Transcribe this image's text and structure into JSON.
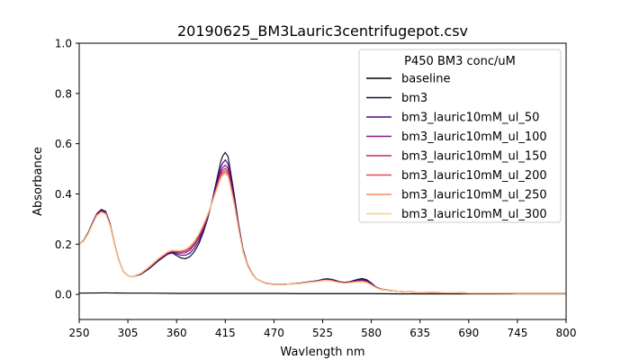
{
  "chart_data": {
    "type": "line",
    "title": "20190625_BM3Lauric3centrifugepot.csv",
    "xlabel": "Wavlength nm",
    "ylabel": "Absorbance",
    "xlim": [
      250,
      800
    ],
    "ylim": [
      -0.1,
      1.0
    ],
    "xticks": [
      250,
      305,
      360,
      415,
      470,
      525,
      580,
      635,
      690,
      745,
      800
    ],
    "yticks": [
      0.0,
      0.2,
      0.4,
      0.6,
      0.8,
      1.0
    ],
    "ytick_labels": [
      "0.0",
      "0.2",
      "0.4",
      "0.6",
      "0.8",
      "1.0"
    ],
    "grid": false,
    "legend": {
      "title": "P450 BM3 conc/uM",
      "placement": "top-right"
    },
    "series": [
      {
        "name": "baseline",
        "color": "#000000",
        "x": [
          250,
          280,
          305,
          330,
          360,
          390,
          415,
          440,
          470,
          500,
          525,
          550,
          580,
          610,
          635,
          660,
          690,
          720,
          745,
          770,
          800
        ],
        "y": [
          0.005,
          0.006,
          0.005,
          0.005,
          0.004,
          0.004,
          0.004,
          0.004,
          0.004,
          0.003,
          0.003,
          0.003,
          0.003,
          0.002,
          0.002,
          0.002,
          0.002,
          0.002,
          0.002,
          0.002,
          0.002
        ]
      },
      {
        "name": "bm3",
        "color": "#140f3a",
        "x": [
          250,
          255,
          260,
          265,
          270,
          275,
          280,
          285,
          290,
          295,
          300,
          305,
          310,
          320,
          330,
          340,
          350,
          355,
          360,
          365,
          370,
          375,
          380,
          385,
          390,
          395,
          400,
          405,
          410,
          412,
          415,
          418,
          420,
          425,
          430,
          435,
          440,
          445,
          450,
          460,
          470,
          480,
          490,
          500,
          510,
          520,
          525,
          530,
          535,
          540,
          545,
          550,
          555,
          560,
          565,
          570,
          575,
          580,
          585,
          590,
          600,
          610,
          620,
          640,
          660,
          680,
          700,
          720,
          745,
          770,
          800
        ],
        "y": [
          0.2,
          0.215,
          0.245,
          0.285,
          0.322,
          0.338,
          0.33,
          0.28,
          0.2,
          0.135,
          0.09,
          0.075,
          0.07,
          0.08,
          0.105,
          0.135,
          0.16,
          0.165,
          0.155,
          0.145,
          0.142,
          0.15,
          0.17,
          0.2,
          0.245,
          0.3,
          0.37,
          0.45,
          0.53,
          0.55,
          0.565,
          0.55,
          0.51,
          0.4,
          0.28,
          0.18,
          0.12,
          0.085,
          0.062,
          0.045,
          0.04,
          0.04,
          0.042,
          0.045,
          0.05,
          0.055,
          0.06,
          0.062,
          0.06,
          0.055,
          0.05,
          0.048,
          0.05,
          0.055,
          0.06,
          0.063,
          0.058,
          0.045,
          0.03,
          0.022,
          0.016,
          0.012,
          0.01,
          0.008,
          0.007,
          0.006,
          0.005,
          0.005,
          0.004,
          0.004,
          0.004
        ]
      },
      {
        "name": "bm3_lauric10mM_ul_50",
        "color": "#4d0b7a",
        "x": [
          250,
          255,
          260,
          265,
          270,
          275,
          280,
          285,
          290,
          295,
          300,
          305,
          310,
          320,
          330,
          340,
          350,
          355,
          360,
          365,
          370,
          375,
          380,
          385,
          390,
          395,
          400,
          405,
          410,
          412,
          415,
          418,
          420,
          425,
          430,
          435,
          440,
          445,
          450,
          460,
          470,
          480,
          490,
          500,
          510,
          520,
          525,
          530,
          535,
          540,
          545,
          550,
          555,
          560,
          565,
          570,
          575,
          580,
          585,
          590,
          600,
          610,
          620,
          640,
          660,
          680,
          700,
          720,
          745,
          770,
          800
        ],
        "y": [
          0.2,
          0.214,
          0.243,
          0.283,
          0.32,
          0.335,
          0.327,
          0.278,
          0.199,
          0.134,
          0.09,
          0.075,
          0.07,
          0.082,
          0.108,
          0.138,
          0.162,
          0.168,
          0.162,
          0.156,
          0.156,
          0.164,
          0.183,
          0.212,
          0.254,
          0.305,
          0.368,
          0.437,
          0.506,
          0.522,
          0.535,
          0.521,
          0.485,
          0.385,
          0.272,
          0.176,
          0.118,
          0.084,
          0.061,
          0.045,
          0.04,
          0.04,
          0.042,
          0.045,
          0.05,
          0.054,
          0.058,
          0.059,
          0.058,
          0.053,
          0.049,
          0.047,
          0.049,
          0.053,
          0.057,
          0.059,
          0.054,
          0.042,
          0.029,
          0.021,
          0.016,
          0.012,
          0.01,
          0.008,
          0.007,
          0.006,
          0.005,
          0.005,
          0.004,
          0.004,
          0.004
        ]
      },
      {
        "name": "bm3_lauric10mM_ul_100",
        "color": "#8a1a86",
        "x": [
          250,
          255,
          260,
          265,
          270,
          275,
          280,
          285,
          290,
          295,
          300,
          305,
          310,
          320,
          330,
          340,
          350,
          355,
          360,
          365,
          370,
          375,
          380,
          385,
          390,
          395,
          400,
          405,
          410,
          412,
          415,
          418,
          420,
          425,
          430,
          435,
          440,
          445,
          450,
          460,
          470,
          480,
          490,
          500,
          510,
          520,
          525,
          530,
          535,
          540,
          545,
          550,
          555,
          560,
          565,
          570,
          575,
          580,
          585,
          590,
          600,
          610,
          620,
          640,
          660,
          680,
          700,
          720,
          745,
          770,
          800
        ],
        "y": [
          0.2,
          0.213,
          0.242,
          0.281,
          0.318,
          0.332,
          0.325,
          0.276,
          0.198,
          0.134,
          0.089,
          0.075,
          0.07,
          0.083,
          0.11,
          0.141,
          0.165,
          0.17,
          0.167,
          0.164,
          0.166,
          0.176,
          0.195,
          0.224,
          0.262,
          0.31,
          0.366,
          0.428,
          0.49,
          0.504,
          0.515,
          0.502,
          0.468,
          0.375,
          0.267,
          0.173,
          0.117,
          0.083,
          0.061,
          0.045,
          0.039,
          0.039,
          0.041,
          0.044,
          0.049,
          0.053,
          0.057,
          0.058,
          0.056,
          0.052,
          0.048,
          0.046,
          0.048,
          0.051,
          0.054,
          0.056,
          0.051,
          0.04,
          0.028,
          0.021,
          0.016,
          0.012,
          0.01,
          0.008,
          0.007,
          0.006,
          0.005,
          0.005,
          0.004,
          0.004,
          0.004
        ]
      },
      {
        "name": "bm3_lauric10mM_ul_150",
        "color": "#c1296a",
        "x": [
          250,
          255,
          260,
          265,
          270,
          275,
          280,
          285,
          290,
          295,
          300,
          305,
          310,
          320,
          330,
          340,
          350,
          355,
          360,
          365,
          370,
          375,
          380,
          385,
          390,
          395,
          400,
          405,
          410,
          412,
          415,
          418,
          420,
          425,
          430,
          435,
          440,
          445,
          450,
          460,
          470,
          480,
          490,
          500,
          510,
          520,
          525,
          530,
          535,
          540,
          545,
          550,
          555,
          560,
          565,
          570,
          575,
          580,
          585,
          590,
          600,
          610,
          620,
          640,
          660,
          680,
          700,
          720,
          745,
          770,
          800
        ],
        "y": [
          0.2,
          0.213,
          0.241,
          0.28,
          0.316,
          0.33,
          0.323,
          0.275,
          0.197,
          0.133,
          0.089,
          0.075,
          0.07,
          0.084,
          0.111,
          0.142,
          0.167,
          0.172,
          0.17,
          0.169,
          0.172,
          0.183,
          0.202,
          0.231,
          0.268,
          0.313,
          0.365,
          0.422,
          0.48,
          0.493,
          0.502,
          0.49,
          0.457,
          0.368,
          0.264,
          0.172,
          0.116,
          0.083,
          0.061,
          0.044,
          0.039,
          0.039,
          0.041,
          0.044,
          0.048,
          0.052,
          0.056,
          0.057,
          0.055,
          0.051,
          0.047,
          0.045,
          0.047,
          0.05,
          0.052,
          0.053,
          0.049,
          0.039,
          0.028,
          0.02,
          0.015,
          0.012,
          0.01,
          0.008,
          0.007,
          0.006,
          0.005,
          0.005,
          0.004,
          0.004,
          0.004
        ]
      },
      {
        "name": "bm3_lauric10mM_ul_200",
        "color": "#eb4a52",
        "x": [
          250,
          255,
          260,
          265,
          270,
          275,
          280,
          285,
          290,
          295,
          300,
          305,
          310,
          320,
          330,
          340,
          350,
          355,
          360,
          365,
          370,
          375,
          380,
          385,
          390,
          395,
          400,
          405,
          410,
          412,
          415,
          418,
          420,
          425,
          430,
          435,
          440,
          445,
          450,
          460,
          470,
          480,
          490,
          500,
          510,
          520,
          525,
          530,
          535,
          540,
          545,
          550,
          555,
          560,
          565,
          570,
          575,
          580,
          585,
          590,
          600,
          610,
          620,
          640,
          660,
          680,
          700,
          720,
          745,
          770,
          800
        ],
        "y": [
          0.2,
          0.212,
          0.24,
          0.279,
          0.315,
          0.328,
          0.321,
          0.274,
          0.197,
          0.133,
          0.089,
          0.075,
          0.07,
          0.084,
          0.112,
          0.143,
          0.168,
          0.174,
          0.172,
          0.172,
          0.176,
          0.188,
          0.207,
          0.236,
          0.272,
          0.315,
          0.364,
          0.418,
          0.472,
          0.484,
          0.492,
          0.481,
          0.45,
          0.363,
          0.262,
          0.171,
          0.116,
          0.083,
          0.061,
          0.044,
          0.039,
          0.039,
          0.041,
          0.044,
          0.048,
          0.052,
          0.055,
          0.056,
          0.054,
          0.05,
          0.047,
          0.045,
          0.046,
          0.049,
          0.051,
          0.052,
          0.048,
          0.038,
          0.027,
          0.02,
          0.015,
          0.012,
          0.01,
          0.008,
          0.007,
          0.006,
          0.005,
          0.005,
          0.004,
          0.004,
          0.004
        ]
      },
      {
        "name": "bm3_lauric10mM_ul_250",
        "color": "#f98a5a",
        "x": [
          250,
          255,
          260,
          265,
          270,
          275,
          280,
          285,
          290,
          295,
          300,
          305,
          310,
          320,
          330,
          340,
          350,
          355,
          360,
          365,
          370,
          375,
          380,
          385,
          390,
          395,
          400,
          405,
          410,
          412,
          415,
          418,
          420,
          425,
          430,
          435,
          440,
          445,
          450,
          460,
          470,
          480,
          490,
          500,
          510,
          520,
          525,
          530,
          535,
          540,
          545,
          550,
          555,
          560,
          565,
          570,
          575,
          580,
          585,
          590,
          600,
          610,
          620,
          640,
          660,
          680,
          700,
          720,
          745,
          770,
          800
        ],
        "y": [
          0.2,
          0.212,
          0.24,
          0.278,
          0.314,
          0.327,
          0.32,
          0.273,
          0.196,
          0.133,
          0.089,
          0.075,
          0.07,
          0.085,
          0.113,
          0.144,
          0.169,
          0.175,
          0.174,
          0.174,
          0.178,
          0.19,
          0.21,
          0.239,
          0.275,
          0.317,
          0.364,
          0.415,
          0.466,
          0.478,
          0.485,
          0.474,
          0.444,
          0.36,
          0.26,
          0.17,
          0.115,
          0.082,
          0.061,
          0.044,
          0.039,
          0.039,
          0.041,
          0.043,
          0.048,
          0.052,
          0.055,
          0.056,
          0.054,
          0.05,
          0.046,
          0.044,
          0.046,
          0.048,
          0.05,
          0.051,
          0.047,
          0.038,
          0.027,
          0.02,
          0.015,
          0.012,
          0.01,
          0.008,
          0.007,
          0.006,
          0.005,
          0.005,
          0.004,
          0.004,
          0.004
        ]
      },
      {
        "name": "bm3_lauric10mM_ul_300",
        "color": "#fcca8a",
        "x": [
          250,
          255,
          260,
          265,
          270,
          275,
          280,
          285,
          290,
          295,
          300,
          305,
          310,
          320,
          330,
          340,
          350,
          355,
          360,
          365,
          370,
          375,
          380,
          385,
          390,
          395,
          400,
          405,
          410,
          412,
          415,
          418,
          420,
          425,
          430,
          435,
          440,
          445,
          450,
          460,
          470,
          480,
          490,
          500,
          510,
          520,
          525,
          530,
          535,
          540,
          545,
          550,
          555,
          560,
          565,
          570,
          575,
          580,
          585,
          590,
          600,
          610,
          620,
          640,
          660,
          680,
          700,
          720,
          745,
          770,
          800
        ],
        "y": [
          0.2,
          0.212,
          0.239,
          0.278,
          0.313,
          0.326,
          0.319,
          0.272,
          0.196,
          0.133,
          0.089,
          0.075,
          0.07,
          0.085,
          0.113,
          0.145,
          0.17,
          0.176,
          0.175,
          0.175,
          0.18,
          0.192,
          0.212,
          0.241,
          0.277,
          0.318,
          0.364,
          0.413,
          0.462,
          0.473,
          0.48,
          0.469,
          0.44,
          0.357,
          0.259,
          0.17,
          0.115,
          0.082,
          0.061,
          0.044,
          0.039,
          0.039,
          0.041,
          0.043,
          0.048,
          0.051,
          0.054,
          0.055,
          0.053,
          0.049,
          0.046,
          0.044,
          0.045,
          0.048,
          0.049,
          0.05,
          0.046,
          0.037,
          0.027,
          0.02,
          0.015,
          0.012,
          0.01,
          0.008,
          0.007,
          0.006,
          0.005,
          0.005,
          0.004,
          0.004,
          0.004
        ]
      }
    ]
  }
}
